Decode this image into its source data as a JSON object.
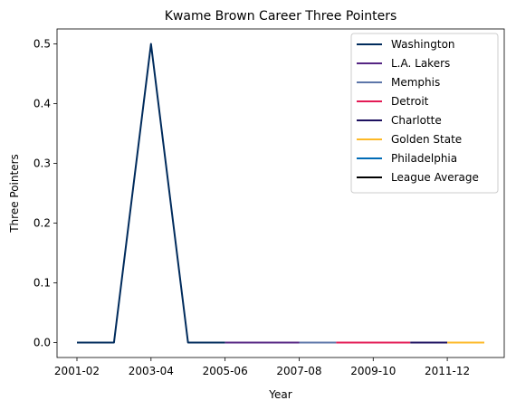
{
  "chart_data": {
    "type": "line",
    "title": "Kwame Brown Career Three Pointers",
    "xlabel": "Year",
    "ylabel": "Three Pointers",
    "categories": [
      "2001-02",
      "2002-03",
      "2003-04",
      "2004-05",
      "2005-06",
      "2006-07",
      "2007-08",
      "2008-09",
      "2009-10",
      "2010-11",
      "2011-12",
      "2012-13"
    ],
    "x_tick_labels": [
      "2001-02",
      "2003-04",
      "2005-06",
      "2007-08",
      "2009-10",
      "2011-12"
    ],
    "y_ticks": [
      0.0,
      0.1,
      0.2,
      0.3,
      0.4,
      0.5
    ],
    "ylim": [
      -0.025,
      0.525
    ],
    "grid": false,
    "legend_position": "top-right",
    "series": [
      {
        "name": "Washington",
        "color": "#002B5C",
        "points": [
          [
            "2001-02",
            0.0
          ],
          [
            "2002-03",
            0.0
          ],
          [
            "2003-04",
            0.5
          ],
          [
            "2004-05",
            0.0
          ],
          [
            "2005-06",
            0.0
          ]
        ]
      },
      {
        "name": "L.A. Lakers",
        "color": "#552583",
        "points": [
          [
            "2005-06",
            0.0
          ],
          [
            "2006-07",
            0.0
          ],
          [
            "2007-08",
            0.0
          ]
        ]
      },
      {
        "name": "Memphis",
        "color": "#5D76A9",
        "points": [
          [
            "2007-08",
            0.0
          ],
          [
            "2008-09",
            0.0
          ]
        ]
      },
      {
        "name": "Detroit",
        "color": "#E31B55",
        "points": [
          [
            "2008-09",
            0.0
          ],
          [
            "2009-10",
            0.0
          ],
          [
            "2010-11",
            0.0
          ]
        ]
      },
      {
        "name": "Charlotte",
        "color": "#1D1160",
        "points": [
          [
            "2010-11",
            0.0
          ],
          [
            "2011-12",
            0.0
          ]
        ]
      },
      {
        "name": "Golden State",
        "color": "#FDB927",
        "points": [
          [
            "2011-12",
            0.0
          ],
          [
            "2012-13",
            0.0
          ]
        ]
      },
      {
        "name": "Philadelphia",
        "color": "#006BB6",
        "points": []
      },
      {
        "name": "League Average",
        "color": "#000000",
        "points": []
      }
    ]
  }
}
